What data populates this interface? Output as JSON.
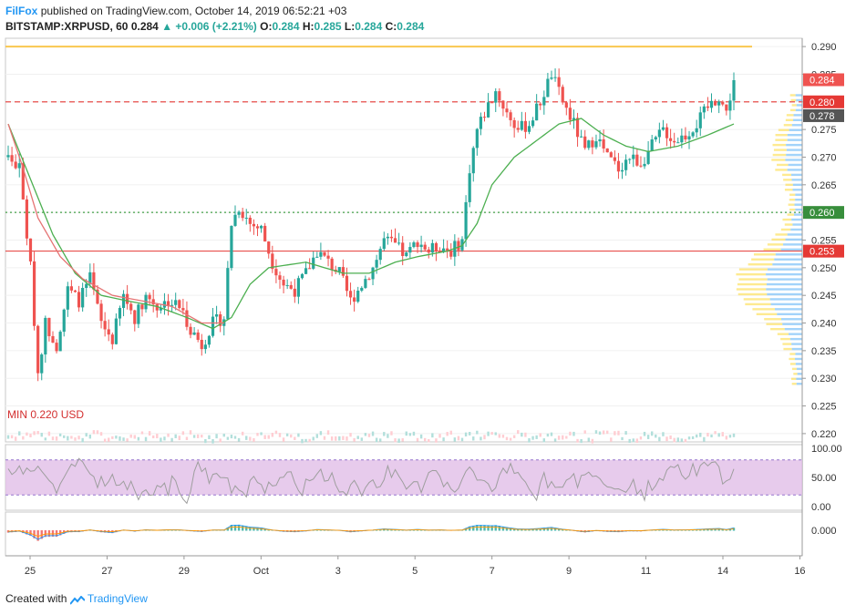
{
  "header": {
    "brand": "FilFox",
    "published": "published on TradingView.com, October 14, 2019 06:52:21 +03",
    "symbol": "BITSTAMP:XRPUSD, 60",
    "last": "0.284",
    "change": "▲ +0.006 (+2.21%)",
    "o_label": "O:",
    "o_val": "0.284",
    "h_label": "H:",
    "h_val": "0.285",
    "l_label": "L:",
    "l_val": "0.284",
    "c_label": "C:",
    "c_val": "0.284"
  },
  "footer": {
    "created": "Created with",
    "brand": "TradingView"
  },
  "colors": {
    "up": "#26a69a",
    "down": "#ef5350",
    "ma": "#4caf50",
    "ma_fast": "#e57373",
    "rsi_band": "#e1bee7",
    "level": "#d32f2f"
  },
  "chart_data": {
    "type": "candlestick",
    "x_ticks": [
      "25",
      "27",
      "29",
      "Oct",
      "3",
      "5",
      "7",
      "9",
      "11",
      "14",
      "16"
    ],
    "y_ticks": [
      "0.290",
      "0.285",
      "0.280",
      "0.275",
      "0.270",
      "0.265",
      "0.260",
      "0.255",
      "0.250",
      "0.245",
      "0.240",
      "0.235",
      "0.230",
      "0.225",
      "0.220"
    ],
    "ylim": [
      0.2185,
      0.2915
    ],
    "annotation_min": "MIN 0.220 USD",
    "price_labels": [
      {
        "text": "0.284",
        "value": 0.284,
        "color": "#ef5350"
      },
      {
        "text": "0.280",
        "value": 0.28,
        "color": "#e53935"
      },
      {
        "text": "0.278",
        "value": 0.2775,
        "color": "#555555"
      },
      {
        "text": "0.260",
        "value": 0.26,
        "color": "#388e3c"
      },
      {
        "text": "0.253",
        "value": 0.253,
        "color": "#e53935"
      }
    ],
    "levels": [
      {
        "value": 0.29,
        "style": "solid",
        "color": "#f9c74f"
      },
      {
        "value": 0.28,
        "style": "dashed",
        "color": "#e53935"
      },
      {
        "value": 0.26,
        "style": "dotted",
        "color": "#43a047"
      },
      {
        "value": 0.253,
        "style": "solid",
        "color": "#e53935"
      }
    ],
    "price_path": [
      [
        0,
        0.27
      ],
      [
        3,
        0.268
      ],
      [
        6,
        0.25
      ],
      [
        8,
        0.231
      ],
      [
        10,
        0.24
      ],
      [
        13,
        0.236
      ],
      [
        16,
        0.246
      ],
      [
        19,
        0.244
      ],
      [
        22,
        0.248
      ],
      [
        25,
        0.24
      ],
      [
        28,
        0.237
      ],
      [
        31,
        0.245
      ],
      [
        34,
        0.241
      ],
      [
        37,
        0.245
      ],
      [
        40,
        0.243
      ],
      [
        43,
        0.244
      ],
      [
        46,
        0.243
      ],
      [
        49,
        0.239
      ],
      [
        52,
        0.236
      ],
      [
        55,
        0.24
      ],
      [
        58,
        0.241
      ],
      [
        60,
        0.258
      ],
      [
        62,
        0.261
      ],
      [
        65,
        0.258
      ],
      [
        68,
        0.257
      ],
      [
        71,
        0.251
      ],
      [
        74,
        0.247
      ],
      [
        77,
        0.246
      ],
      [
        80,
        0.249
      ],
      [
        83,
        0.253
      ],
      [
        86,
        0.251
      ],
      [
        89,
        0.249
      ],
      [
        92,
        0.244
      ],
      [
        95,
        0.247
      ],
      [
        98,
        0.25
      ],
      [
        101,
        0.255
      ],
      [
        104,
        0.254
      ],
      [
        107,
        0.252
      ],
      [
        110,
        0.255
      ],
      [
        113,
        0.253
      ],
      [
        116,
        0.254
      ],
      [
        119,
        0.253
      ],
      [
        122,
        0.255
      ],
      [
        124,
        0.268
      ],
      [
        126,
        0.275
      ],
      [
        128,
        0.278
      ],
      [
        131,
        0.282
      ],
      [
        134,
        0.278
      ],
      [
        137,
        0.275
      ],
      [
        140,
        0.276
      ],
      [
        143,
        0.28
      ],
      [
        146,
        0.285
      ],
      [
        149,
        0.28
      ],
      [
        152,
        0.276
      ],
      [
        155,
        0.271
      ],
      [
        158,
        0.274
      ],
      [
        161,
        0.27
      ],
      [
        164,
        0.268
      ],
      [
        167,
        0.27
      ],
      [
        170,
        0.269
      ],
      [
        173,
        0.272
      ],
      [
        176,
        0.275
      ],
      [
        179,
        0.273
      ],
      [
        182,
        0.274
      ],
      [
        185,
        0.276
      ],
      [
        188,
        0.279
      ],
      [
        191,
        0.281
      ],
      [
        193,
        0.278
      ],
      [
        195,
        0.284
      ]
    ],
    "ma_path": [
      [
        0,
        0.276
      ],
      [
        6,
        0.266
      ],
      [
        12,
        0.256
      ],
      [
        18,
        0.249
      ],
      [
        25,
        0.245
      ],
      [
        32,
        0.244
      ],
      [
        40,
        0.243
      ],
      [
        48,
        0.241
      ],
      [
        55,
        0.239
      ],
      [
        60,
        0.241
      ],
      [
        65,
        0.247
      ],
      [
        70,
        0.25
      ],
      [
        80,
        0.251
      ],
      [
        90,
        0.249
      ],
      [
        97,
        0.249
      ],
      [
        104,
        0.251
      ],
      [
        110,
        0.252
      ],
      [
        118,
        0.253
      ],
      [
        122,
        0.254
      ],
      [
        126,
        0.258
      ],
      [
        130,
        0.265
      ],
      [
        136,
        0.27
      ],
      [
        142,
        0.273
      ],
      [
        148,
        0.276
      ],
      [
        154,
        0.277
      ],
      [
        160,
        0.274
      ],
      [
        166,
        0.272
      ],
      [
        172,
        0.271
      ],
      [
        180,
        0.272
      ],
      [
        188,
        0.274
      ],
      [
        195,
        0.276
      ]
    ],
    "n_candles": 196,
    "rsi": {
      "ticks": [
        "100.00",
        "50.00",
        "0.00"
      ],
      "band": [
        20,
        80
      ]
    },
    "macd": {
      "ticks": [
        "0.000"
      ]
    }
  }
}
